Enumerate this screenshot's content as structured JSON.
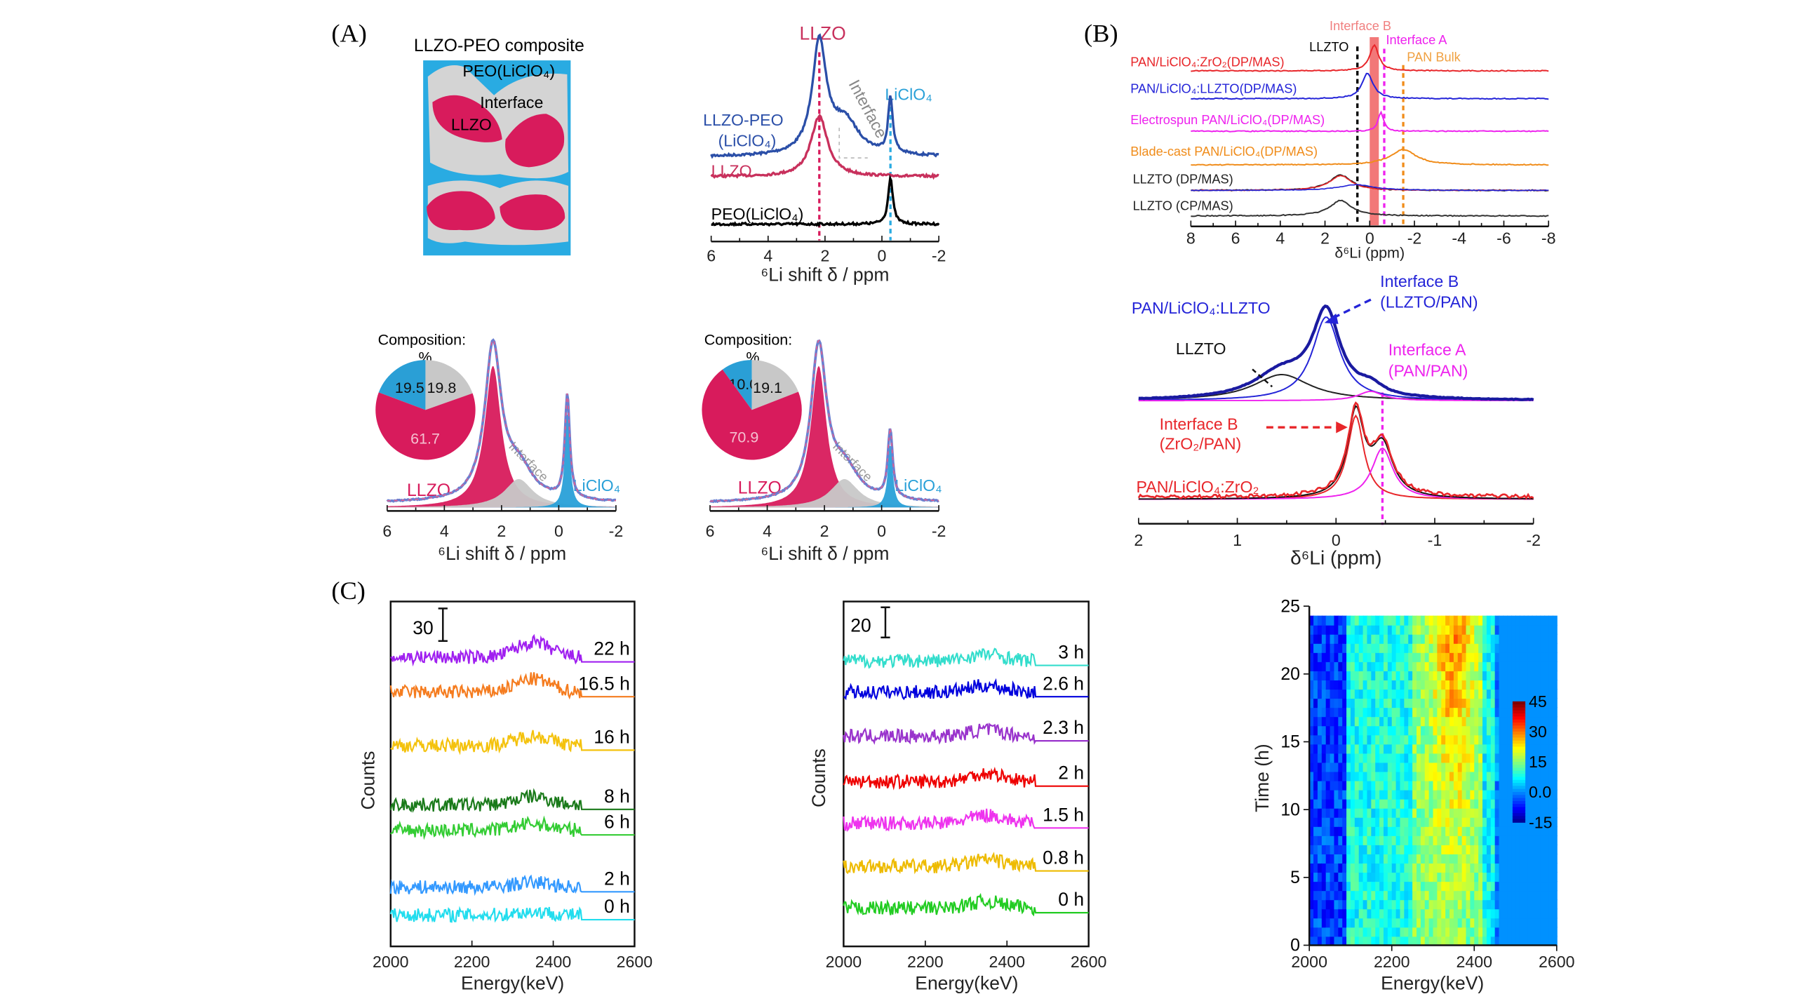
{
  "panels": {
    "A": "(A)",
    "B": "(B)",
    "C": "(C)"
  },
  "schematic": {
    "title": "LLZO-PEO composite",
    "labels": {
      "peo": "PEO(LiClO₄)",
      "interface": "Interface",
      "llzo": "LLZO"
    },
    "colors": {
      "peo": "#29abe2",
      "interface": "#d4d4d4",
      "llzo": "#d81b5c"
    }
  },
  "chart_data": [
    {
      "id": "A1",
      "type": "line",
      "xlabel": "⁶Li shift δ / ppm",
      "xlim": [
        6,
        -2
      ],
      "xticks": [
        "6",
        "4",
        "2",
        "0",
        "-2"
      ],
      "annotations": {
        "llzo": "LLZO",
        "liclo4": "LiClO₄",
        "interface": "Interface"
      },
      "series": [
        {
          "name": "LLZO-PEO (LiClO₄)",
          "name_line1": "LLZO-PEO",
          "name_line2": "(LiClO₄)",
          "color": "#2b4fa8",
          "peaks": [
            {
              "center": 2.2,
              "height": 1.0,
              "width": 0.3
            },
            {
              "center": 1.3,
              "height": 0.3,
              "width": 0.6
            },
            {
              "center": -0.3,
              "height": 0.5,
              "width": 0.1
            }
          ]
        },
        {
          "name": "LLZO",
          "color": "#c8305c",
          "peaks": [
            {
              "center": 2.2,
              "height": 0.8,
              "width": 0.35
            }
          ]
        },
        {
          "name": "PEO(LiClO₄)",
          "color": "#000000",
          "peaks": [
            {
              "center": -0.3,
              "height": 1.0,
              "width": 0.1
            }
          ]
        }
      ],
      "markers": [
        {
          "x": 2.2,
          "color": "#d81b5c"
        },
        {
          "x": -0.3,
          "color": "#29abe2"
        }
      ]
    },
    {
      "id": "A2",
      "type": "area",
      "xlabel": "⁶Li shift δ / ppm",
      "xlim": [
        6,
        -2
      ],
      "xticks": [
        "6",
        "4",
        "2",
        "0",
        "-2"
      ],
      "annotations": {
        "llzo": "LLZO",
        "liclo4": "LiClO₄",
        "interface": "Interface"
      },
      "components": [
        {
          "name": "LLZO",
          "color": "#d81b5c",
          "peaks": [
            {
              "center": 2.3,
              "height": 1.0,
              "width": 0.35
            }
          ]
        },
        {
          "name": "Interface",
          "color": "#c8c8c8",
          "peaks": [
            {
              "center": 1.4,
              "height": 0.2,
              "width": 0.6
            }
          ]
        },
        {
          "name": "LiClO₄",
          "color": "#29a0d8",
          "peaks": [
            {
              "center": -0.3,
              "height": 0.68,
              "width": 0.1
            }
          ]
        }
      ],
      "pie": {
        "title": "Composition:",
        "unit": "%",
        "slices": [
          {
            "label": "19.5",
            "value": 19.5,
            "color": "#2a9fd6"
          },
          {
            "label": "19.8",
            "value": 19.8,
            "color": "#c8c8c8"
          },
          {
            "label": "61.7",
            "value": 61.7,
            "color": "#d81b5c"
          }
        ]
      }
    },
    {
      "id": "A3",
      "type": "area",
      "xlabel": "⁶Li shift δ / ppm",
      "xlim": [
        6,
        -2
      ],
      "xticks": [
        "6",
        "4",
        "2",
        "0",
        "-2"
      ],
      "annotations": {
        "llzo": "LLZO",
        "liclo4": "LiClO₄",
        "interface": "Interface"
      },
      "components": [
        {
          "name": "LLZO",
          "color": "#d81b5c",
          "peaks": [
            {
              "center": 2.2,
              "height": 1.0,
              "width": 0.33
            }
          ]
        },
        {
          "name": "Interface",
          "color": "#c8c8c8",
          "peaks": [
            {
              "center": 1.3,
              "height": 0.2,
              "width": 0.6
            }
          ]
        },
        {
          "name": "LiClO₄",
          "color": "#29a0d8",
          "peaks": [
            {
              "center": -0.3,
              "height": 0.45,
              "width": 0.1
            }
          ]
        }
      ],
      "pie": {
        "title": "Composition:",
        "unit": "%",
        "slices": [
          {
            "label": "10.0",
            "value": 10.0,
            "color": "#2a9fd6"
          },
          {
            "label": "19.1",
            "value": 19.1,
            "color": "#c8c8c8"
          },
          {
            "label": "70.9",
            "value": 70.9,
            "color": "#d81b5c"
          }
        ]
      }
    },
    {
      "id": "B1",
      "type": "line",
      "xlabel": "δ⁶Li (ppm)",
      "xlim": [
        8,
        -8
      ],
      "xticks": [
        "8",
        "6",
        "4",
        "2",
        "0",
        "-2",
        "-4",
        "-6",
        "-8"
      ],
      "annotations": {
        "interface_b": "Interface B",
        "interface_a": "Interface A",
        "llzto": "LLZTO",
        "pan_bulk": "PAN Bulk"
      },
      "markers": [
        {
          "label": "LLZTO",
          "x": 0.55,
          "color": "#000000"
        },
        {
          "label": "Interface B",
          "x_range": [
            0,
            -0.2
          ],
          "color": "#f06060"
        },
        {
          "label": "Interface A",
          "x": -0.65,
          "color": "#ee22ee"
        },
        {
          "label": "PAN Bulk",
          "x": -1.5,
          "color": "#f08c1a"
        }
      ],
      "series": [
        {
          "name": "PAN/LiClO₄:ZrO₂(DP/MAS)",
          "color": "#e8262a",
          "peaks": [
            {
              "center": -0.2,
              "height": 1.0,
              "width": 0.25
            }
          ]
        },
        {
          "name": "PAN/LiClO₄:LLZTO(DP/MAS)",
          "color": "#2424d8",
          "peaks": [
            {
              "center": 0.1,
              "height": 1.0,
              "width": 0.3
            }
          ]
        },
        {
          "name": "Electrospun PAN/LiClO₄(DP/MAS)",
          "color": "#ee22ee",
          "peaks": [
            {
              "center": -0.5,
              "height": 0.9,
              "width": 0.15
            }
          ]
        },
        {
          "name": "Blade-cast PAN/LiClO₄(DP/MAS)",
          "color": "#f08c1a",
          "peaks": [
            {
              "center": -1.5,
              "height": 0.6,
              "width": 0.7
            }
          ]
        },
        {
          "name": "LLZTO (DP/MAS)",
          "color": "#222222",
          "peaks": [
            {
              "center": 1.3,
              "height": 0.6,
              "width": 0.6
            }
          ]
        },
        {
          "name": "LLZTO (CP/MAS)",
          "color": "#333333",
          "peaks": [
            {
              "center": 1.3,
              "height": 0.6,
              "width": 0.6
            }
          ]
        }
      ]
    },
    {
      "id": "B2",
      "type": "line",
      "xlabel": "δ⁶Li (ppm)",
      "xlim": [
        2,
        -2
      ],
      "xticks": [
        "2",
        "1",
        "0",
        "-1",
        "-2"
      ],
      "annotations": {
        "llzto_sample": "PAN/LiClO₄:LLZTO",
        "interface_b_llzto_1": "Interface B",
        "interface_b_llzto_2": "(LLZTO/PAN)",
        "llzto": "LLZTO",
        "interface_a_1": "Interface A",
        "interface_a_2": "(PAN/PAN)",
        "interface_b_zro2_1": "Interface B",
        "interface_b_zro2_2": "(ZrO₂/PAN)",
        "zro2_sample": "PAN/LiClO₄:ZrO₂"
      },
      "markers": [
        {
          "x": -0.47,
          "color": "#ee22ee"
        }
      ],
      "series": [
        {
          "name": "PAN/LiClO₄:LLZTO fit LLZTO",
          "color": "#222222",
          "peaks": [
            {
              "center": 0.55,
              "height": 0.28,
              "width": 0.35
            }
          ]
        },
        {
          "name": "PAN/LiClO₄:LLZTO fit Interface B",
          "color": "#2424d8",
          "peaks": [
            {
              "center": 0.1,
              "height": 0.9,
              "width": 0.17
            }
          ]
        },
        {
          "name": "PAN/LiClO₄:LLZTO fit Interface A",
          "color": "#ee22ee",
          "peaks": [
            {
              "center": -0.35,
              "height": 0.1,
              "width": 0.15
            }
          ]
        },
        {
          "name": "PAN/LiClO₄:ZrO₂ fit Interface B",
          "color": "#e8262a",
          "peaks": [
            {
              "center": -0.2,
              "height": 0.9,
              "width": 0.1
            }
          ]
        },
        {
          "name": "PAN/LiClO₄:ZrO₂ fit Interface A",
          "color": "#ee22ee",
          "peaks": [
            {
              "center": -0.47,
              "height": 0.55,
              "width": 0.13
            }
          ]
        }
      ]
    },
    {
      "id": "C1",
      "type": "line",
      "xlabel": "Energy(keV)",
      "ylabel": "Counts",
      "xlim": [
        2000,
        2600
      ],
      "xticks": [
        "2000",
        "2200",
        "2400",
        "2600"
      ],
      "scale_bar": "30",
      "series": [
        {
          "name": "22 h",
          "color": "#a020f0",
          "bump": 0.9
        },
        {
          "name": "16.5 h",
          "color": "#f57c1f",
          "bump": 0.8
        },
        {
          "name": "16 h",
          "color": "#f4c20d",
          "bump": 0.6
        },
        {
          "name": "8 h",
          "color": "#1a7a1a",
          "bump": 0.5
        },
        {
          "name": "6 h",
          "color": "#33cc33",
          "bump": 0.4
        },
        {
          "name": "2 h",
          "color": "#3399ff",
          "bump": 0.3
        },
        {
          "name": "0 h",
          "color": "#22ddee",
          "bump": 0.2
        }
      ]
    },
    {
      "id": "C2",
      "type": "line",
      "xlabel": "Energy(keV)",
      "ylabel": "Counts",
      "xlim": [
        2000,
        2600
      ],
      "xticks": [
        "2000",
        "2200",
        "2400",
        "2600"
      ],
      "scale_bar": "20",
      "series": [
        {
          "name": "3 h",
          "color": "#33ddcc",
          "bump": 0.4
        },
        {
          "name": "2.6 h",
          "color": "#0000dd",
          "bump": 0.4
        },
        {
          "name": "2.3 h",
          "color": "#9933cc",
          "bump": 0.4
        },
        {
          "name": "2 h",
          "color": "#ee0000",
          "bump": 0.5
        },
        {
          "name": "1.5 h",
          "color": "#ee33ee",
          "bump": 0.5
        },
        {
          "name": "0.8 h",
          "color": "#eebb00",
          "bump": 0.4
        },
        {
          "name": "0 h",
          "color": "#22cc22",
          "bump": 0.4
        }
      ]
    },
    {
      "id": "C3",
      "type": "heatmap",
      "xlabel": "Energy(keV)",
      "ylabel": "Time (h)",
      "xlim": [
        2000,
        2600
      ],
      "ylim": [
        0,
        25
      ],
      "xticks": [
        "2000",
        "2200",
        "2400",
        "2600"
      ],
      "yticks": [
        "0",
        "5",
        "10",
        "15",
        "20",
        "25"
      ],
      "colorbar": {
        "range": [
          -15,
          45
        ],
        "ticks": [
          "45",
          "30",
          "15",
          "0.0",
          "-15"
        ],
        "colormap": "jet"
      }
    }
  ]
}
